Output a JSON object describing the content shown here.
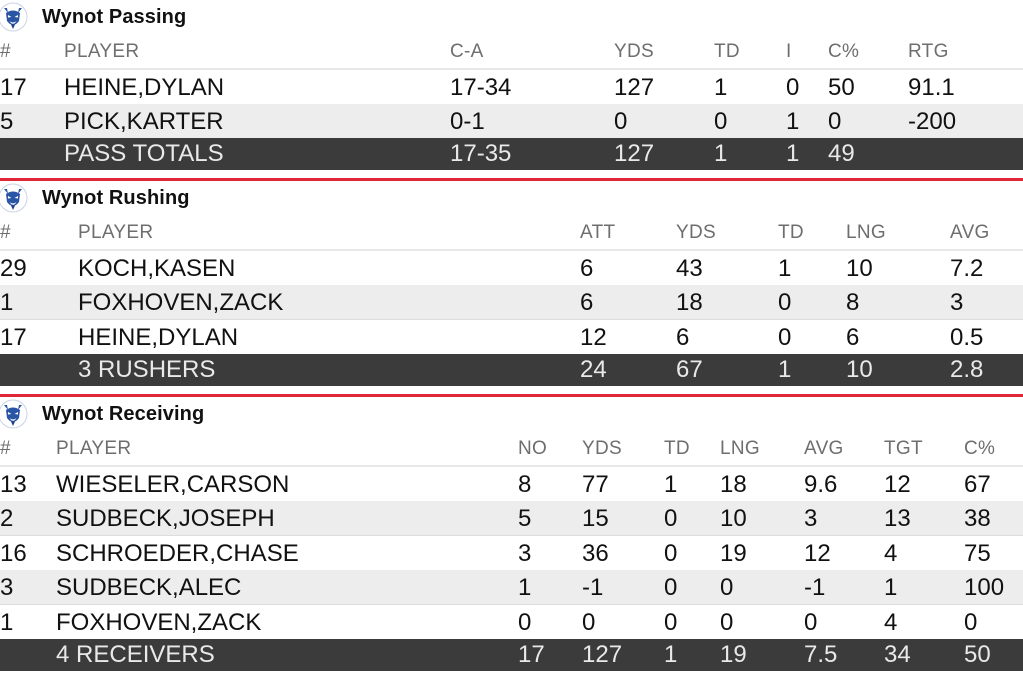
{
  "logo_icon": "blue-devil-logo-icon",
  "colors": {
    "accent_red": "#e2263a",
    "total_row_bg": "#3b3b3b",
    "alt_row_bg": "#ededed",
    "logo_blue": "#2a55a5"
  },
  "passing": {
    "title": "Wynot Passing",
    "headers": [
      "#",
      "PLAYER",
      "C-A",
      "YDS",
      "TD",
      "I",
      "C%",
      "RTG"
    ],
    "rows": [
      [
        "17",
        "HEINE,DYLAN",
        "17-34",
        "127",
        "1",
        "0",
        "50",
        "91.1"
      ],
      [
        "5",
        "PICK,KARTER",
        "0-1",
        "0",
        "0",
        "1",
        "0",
        "-200"
      ]
    ],
    "total": [
      "",
      "PASS TOTALS",
      "17-35",
      "127",
      "1",
      "1",
      "49",
      ""
    ]
  },
  "rushing": {
    "title": "Wynot Rushing",
    "headers": [
      "#",
      "PLAYER",
      "ATT",
      "YDS",
      "TD",
      "LNG",
      "AVG"
    ],
    "rows": [
      [
        "29",
        "KOCH,KASEN",
        "6",
        "43",
        "1",
        "10",
        "7.2"
      ],
      [
        "1",
        "FOXHOVEN,ZACK",
        "6",
        "18",
        "0",
        "8",
        "3"
      ],
      [
        "17",
        "HEINE,DYLAN",
        "12",
        "6",
        "0",
        "6",
        "0.5"
      ]
    ],
    "total": [
      "",
      "3 RUSHERS",
      "24",
      "67",
      "1",
      "10",
      "2.8"
    ]
  },
  "receiving": {
    "title": "Wynot Receiving",
    "headers": [
      "#",
      "PLAYER",
      "NO",
      "YDS",
      "TD",
      "LNG",
      "AVG",
      "TGT",
      "C%"
    ],
    "rows": [
      [
        "13",
        "WIESELER,CARSON",
        "8",
        "77",
        "1",
        "18",
        "9.6",
        "12",
        "67"
      ],
      [
        "2",
        "SUDBECK,JOSEPH",
        "5",
        "15",
        "0",
        "10",
        "3",
        "13",
        "38"
      ],
      [
        "16",
        "SCHROEDER,CHASE",
        "3",
        "36",
        "0",
        "19",
        "12",
        "4",
        "75"
      ],
      [
        "3",
        "SUDBECK,ALEC",
        "1",
        "-1",
        "0",
        "0",
        "-1",
        "1",
        "100"
      ],
      [
        "1",
        "FOXHOVEN,ZACK",
        "0",
        "0",
        "0",
        "0",
        "0",
        "4",
        "0"
      ]
    ],
    "total": [
      "",
      "4 RECEIVERS",
      "17",
      "127",
      "1",
      "19",
      "7.5",
      "34",
      "50"
    ]
  }
}
